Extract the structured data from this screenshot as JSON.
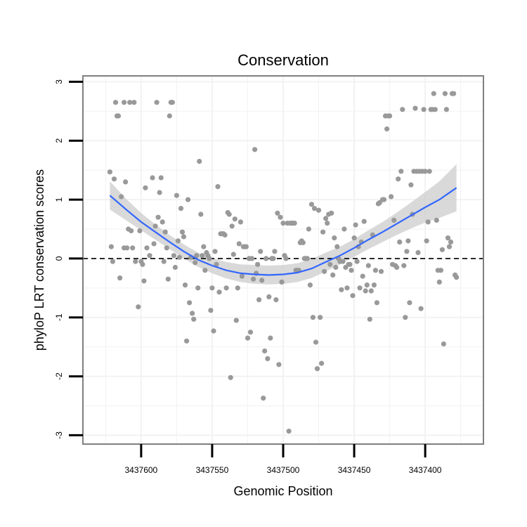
{
  "chart_data": {
    "type": "scatter",
    "title": "Conservation",
    "xlabel": "Genomic Position",
    "ylabel": "phyloP LRT conservation scores",
    "x_reversed": true,
    "xlim": [
      3437641,
      3437359
    ],
    "ylim": [
      -3.15,
      3.1
    ],
    "x_ticks": [
      3437600,
      3437550,
      3437500,
      3437450,
      3437400
    ],
    "x_tick_labels": [
      "3437600",
      "3437550",
      "3437500",
      "3437450",
      "3437400"
    ],
    "y_ticks": [
      -3,
      -2,
      -1,
      0,
      1,
      2,
      3
    ],
    "y_tick_labels": [
      "-3",
      "-2",
      "-1",
      "0",
      "1",
      "2",
      "3"
    ],
    "grid": true,
    "reference_line": {
      "y": 0,
      "style": "dashed"
    },
    "colors": {
      "points": "#999999",
      "smooth": "#3366ff",
      "band": "#cccccc",
      "panel_border": "#7f7f7f",
      "grid": "#f2f2f2"
    },
    "points": [
      [
        3437622,
        1.47
      ],
      [
        3437621,
        0.2
      ],
      [
        3437620,
        -0.05
      ],
      [
        3437619,
        1.35
      ],
      [
        3437618,
        2.65
      ],
      [
        3437617,
        2.42
      ],
      [
        3437616,
        2.42
      ],
      [
        3437615,
        -0.33
      ],
      [
        3437614,
        1.05
      ],
      [
        3437612,
        2.65
      ],
      [
        3437612,
        0.18
      ],
      [
        3437611,
        1.3
      ],
      [
        3437610,
        0.18
      ],
      [
        3437609,
        0.5
      ],
      [
        3437608,
        2.65
      ],
      [
        3437607,
        0.47
      ],
      [
        3437606,
        0.18
      ],
      [
        3437605,
        2.65
      ],
      [
        3437604,
        -0.05
      ],
      [
        3437602,
        -0.82
      ],
      [
        3437601,
        0.47
      ],
      [
        3437600,
        -0.05
      ],
      [
        3437599,
        -0.1
      ],
      [
        3437598,
        -0.38
      ],
      [
        3437597,
        1.2
      ],
      [
        3437596,
        0.18
      ],
      [
        3437594,
        0.05
      ],
      [
        3437592,
        1.37
      ],
      [
        3437591,
        0.25
      ],
      [
        3437590,
        0.55
      ],
      [
        3437589,
        2.65
      ],
      [
        3437588,
        0.7
      ],
      [
        3437587,
        1.12
      ],
      [
        3437586,
        1.37
      ],
      [
        3437585,
        0.62
      ],
      [
        3437584,
        -0.05
      ],
      [
        3437583,
        0.45
      ],
      [
        3437582,
        0.18
      ],
      [
        3437581,
        -0.35
      ],
      [
        3437580,
        2.42
      ],
      [
        3437579,
        2.65
      ],
      [
        3437578,
        2.65
      ],
      [
        3437577,
        0.05
      ],
      [
        3437576,
        -0.15
      ],
      [
        3437575,
        1.07
      ],
      [
        3437574,
        0.3
      ],
      [
        3437573,
        0.02
      ],
      [
        3437572,
        0.85
      ],
      [
        3437571,
        0.45
      ],
      [
        3437570,
        0.37
      ],
      [
        3437569,
        -0.45
      ],
      [
        3437568,
        -1.4
      ],
      [
        3437567,
        1.0
      ],
      [
        3437566,
        -0.75
      ],
      [
        3437565,
        0.02
      ],
      [
        3437564,
        -0.93
      ],
      [
        3437563,
        -1.03
      ],
      [
        3437562,
        -0.07
      ],
      [
        3437561,
        0.05
      ],
      [
        3437560,
        -0.5
      ],
      [
        3437559,
        1.65
      ],
      [
        3437558,
        0.75
      ],
      [
        3437557,
        0.05
      ],
      [
        3437556,
        0.2
      ],
      [
        3437555,
        -0.2
      ],
      [
        3437554,
        0.1
      ],
      [
        3437553,
        0.05
      ],
      [
        3437552,
        0.0
      ],
      [
        3437551,
        -0.88
      ],
      [
        3437550,
        -0.5
      ],
      [
        3437549,
        -1.23
      ],
      [
        3437548,
        0.12
      ],
      [
        3437547,
        -0.1
      ],
      [
        3437546,
        1.22
      ],
      [
        3437545,
        -0.57
      ],
      [
        3437544,
        0.42
      ],
      [
        3437543,
        0.42
      ],
      [
        3437542,
        0.42
      ],
      [
        3437541,
        0.4
      ],
      [
        3437540,
        -0.5
      ],
      [
        3437539,
        0.78
      ],
      [
        3437538,
        0.75
      ],
      [
        3437537,
        -2.02
      ],
      [
        3437536,
        0.55
      ],
      [
        3437535,
        0.07
      ],
      [
        3437534,
        0.67
      ],
      [
        3437533,
        -1.05
      ],
      [
        3437532,
        -0.5
      ],
      [
        3437531,
        0.25
      ],
      [
        3437530,
        0.62
      ],
      [
        3437529,
        -0.3
      ],
      [
        3437528,
        0.2
      ],
      [
        3437527,
        0.2
      ],
      [
        3437526,
        0.2
      ],
      [
        3437525,
        -1.35
      ],
      [
        3437524,
        0.0
      ],
      [
        3437523,
        -1.25
      ],
      [
        3437522,
        0.0
      ],
      [
        3437521,
        -0.35
      ],
      [
        3437520,
        1.85
      ],
      [
        3437519,
        -0.25
      ],
      [
        3437518,
        -0.1
      ],
      [
        3437517,
        -0.7
      ],
      [
        3437516,
        0.12
      ],
      [
        3437515,
        -0.37
      ],
      [
        3437514,
        -2.37
      ],
      [
        3437513,
        -1.57
      ],
      [
        3437512,
        0.0
      ],
      [
        3437511,
        -1.7
      ],
      [
        3437510,
        -0.65
      ],
      [
        3437509,
        -1.35
      ],
      [
        3437508,
        0.0
      ],
      [
        3437507,
        0.0
      ],
      [
        3437506,
        0.12
      ],
      [
        3437505,
        -0.7
      ],
      [
        3437504,
        0.77
      ],
      [
        3437503,
        -1.8
      ],
      [
        3437502,
        0.7
      ],
      [
        3437501,
        -0.4
      ],
      [
        3437500,
        0.6
      ],
      [
        3437499,
        0.05
      ],
      [
        3437498,
        0.0
      ],
      [
        3437497,
        0.6
      ],
      [
        3437496,
        -2.93
      ],
      [
        3437495,
        0.6
      ],
      [
        3437494,
        0.6
      ],
      [
        3437493,
        0.6
      ],
      [
        3437492,
        0.6
      ],
      [
        3437491,
        -0.2
      ],
      [
        3437490,
        -0.2
      ],
      [
        3437489,
        -0.2
      ],
      [
        3437488,
        0.27
      ],
      [
        3437487,
        0.3
      ],
      [
        3437486,
        0.27
      ],
      [
        3437485,
        0.0
      ],
      [
        3437484,
        0.0
      ],
      [
        3437483,
        0.0
      ],
      [
        3437482,
        0.5
      ],
      [
        3437481,
        -0.45
      ],
      [
        3437480,
        0.92
      ],
      [
        3437479,
        -1.0
      ],
      [
        3437478,
        0.85
      ],
      [
        3437477,
        -1.42
      ],
      [
        3437476,
        -1.87
      ],
      [
        3437475,
        0.82
      ],
      [
        3437474,
        -1.0
      ],
      [
        3437473,
        -1.78
      ],
      [
        3437472,
        0.45
      ],
      [
        3437471,
        -0.22
      ],
      [
        3437470,
        0.68
      ],
      [
        3437469,
        0.6
      ],
      [
        3437468,
        0.75
      ],
      [
        3437467,
        -0.1
      ],
      [
        3437466,
        0.77
      ],
      [
        3437465,
        -0.28
      ],
      [
        3437464,
        0.35
      ],
      [
        3437463,
        -0.15
      ],
      [
        3437462,
        0.2
      ],
      [
        3437461,
        0.0
      ],
      [
        3437460,
        -0.05
      ],
      [
        3437459,
        -0.53
      ],
      [
        3437458,
        -0.05
      ],
      [
        3437457,
        0.5
      ],
      [
        3437456,
        -0.15
      ],
      [
        3437455,
        -0.5
      ],
      [
        3437454,
        -0.1
      ],
      [
        3437453,
        -0.1
      ],
      [
        3437452,
        -0.2
      ],
      [
        3437451,
        -0.63
      ],
      [
        3437450,
        0.35
      ],
      [
        3437449,
        0.57
      ],
      [
        3437448,
        -0.05
      ],
      [
        3437447,
        0.2
      ],
      [
        3437446,
        -0.5
      ],
      [
        3437445,
        0.28
      ],
      [
        3437444,
        -0.3
      ],
      [
        3437443,
        0.63
      ],
      [
        3437442,
        -0.55
      ],
      [
        3437441,
        -0.45
      ],
      [
        3437440,
        -0.12
      ],
      [
        3437439,
        -1.03
      ],
      [
        3437438,
        -0.55
      ],
      [
        3437437,
        0.4
      ],
      [
        3437436,
        -0.45
      ],
      [
        3437435,
        -0.2
      ],
      [
        3437434,
        -0.75
      ],
      [
        3437433,
        0.93
      ],
      [
        3437432,
        0.95
      ],
      [
        3437431,
        -0.22
      ],
      [
        3437430,
        1.0
      ],
      [
        3437429,
        1.0
      ],
      [
        3437428,
        2.42
      ],
      [
        3437427,
        2.2
      ],
      [
        3437426,
        2.42
      ],
      [
        3437425,
        2.42
      ],
      [
        3437424,
        1.05
      ],
      [
        3437423,
        -0.1
      ],
      [
        3437422,
        0.65
      ],
      [
        3437421,
        -0.12
      ],
      [
        3437420,
        -0.15
      ],
      [
        3437419,
        1.35
      ],
      [
        3437418,
        0.28
      ],
      [
        3437417,
        1.48
      ],
      [
        3437416,
        2.53
      ],
      [
        3437415,
        -0.12
      ],
      [
        3437414,
        -1.0
      ],
      [
        3437413,
        0.12
      ],
      [
        3437412,
        0.3
      ],
      [
        3437411,
        -0.75
      ],
      [
        3437410,
        1.25
      ],
      [
        3437409,
        0.75
      ],
      [
        3437408,
        1.48
      ],
      [
        3437407,
        2.55
      ],
      [
        3437406,
        1.48
      ],
      [
        3437405,
        0.1
      ],
      [
        3437404,
        1.48
      ],
      [
        3437403,
        -0.85
      ],
      [
        3437402,
        1.48
      ],
      [
        3437401,
        2.53
      ],
      [
        3437400,
        1.48
      ],
      [
        3437399,
        0.3
      ],
      [
        3437398,
        0.62
      ],
      [
        3437397,
        1.48
      ],
      [
        3437396,
        2.53
      ],
      [
        3437395,
        2.53
      ],
      [
        3437394,
        2.8
      ],
      [
        3437393,
        2.53
      ],
      [
        3437392,
        0.65
      ],
      [
        3437391,
        -0.2
      ],
      [
        3437390,
        -0.4
      ],
      [
        3437389,
        -0.2
      ],
      [
        3437388,
        0.15
      ],
      [
        3437387,
        -1.45
      ],
      [
        3437386,
        2.8
      ],
      [
        3437385,
        2.53
      ],
      [
        3437384,
        0.35
      ],
      [
        3437383,
        0.2
      ],
      [
        3437382,
        0.28
      ],
      [
        3437381,
        2.8
      ],
      [
        3437380,
        2.8
      ],
      [
        3437379,
        -0.28
      ],
      [
        3437378,
        -0.32
      ]
    ],
    "smooth": {
      "x": [
        3437622,
        3437610,
        3437600,
        3437590,
        3437580,
        3437570,
        3437560,
        3437550,
        3437540,
        3437530,
        3437520,
        3437510,
        3437500,
        3437490,
        3437480,
        3437470,
        3437460,
        3437450,
        3437440,
        3437430,
        3437420,
        3437410,
        3437400,
        3437390,
        3437378
      ],
      "y": [
        1.07,
        0.82,
        0.62,
        0.45,
        0.28,
        0.12,
        -0.02,
        -0.12,
        -0.2,
        -0.25,
        -0.27,
        -0.28,
        -0.27,
        -0.24,
        -0.17,
        -0.06,
        0.05,
        0.18,
        0.32,
        0.45,
        0.59,
        0.73,
        0.87,
        1.0,
        1.2
      ],
      "lower": [
        0.83,
        0.64,
        0.48,
        0.32,
        0.16,
        0.0,
        -0.14,
        -0.25,
        -0.34,
        -0.4,
        -0.43,
        -0.44,
        -0.43,
        -0.4,
        -0.33,
        -0.22,
        -0.1,
        0.03,
        0.16,
        0.28,
        0.4,
        0.51,
        0.61,
        0.69,
        0.8
      ],
      "upper": [
        1.31,
        1.0,
        0.77,
        0.58,
        0.4,
        0.24,
        0.1,
        0.01,
        -0.06,
        -0.1,
        -0.11,
        -0.12,
        -0.11,
        -0.08,
        -0.01,
        0.1,
        0.2,
        0.33,
        0.48,
        0.62,
        0.78,
        0.95,
        1.13,
        1.31,
        1.6
      ]
    }
  }
}
